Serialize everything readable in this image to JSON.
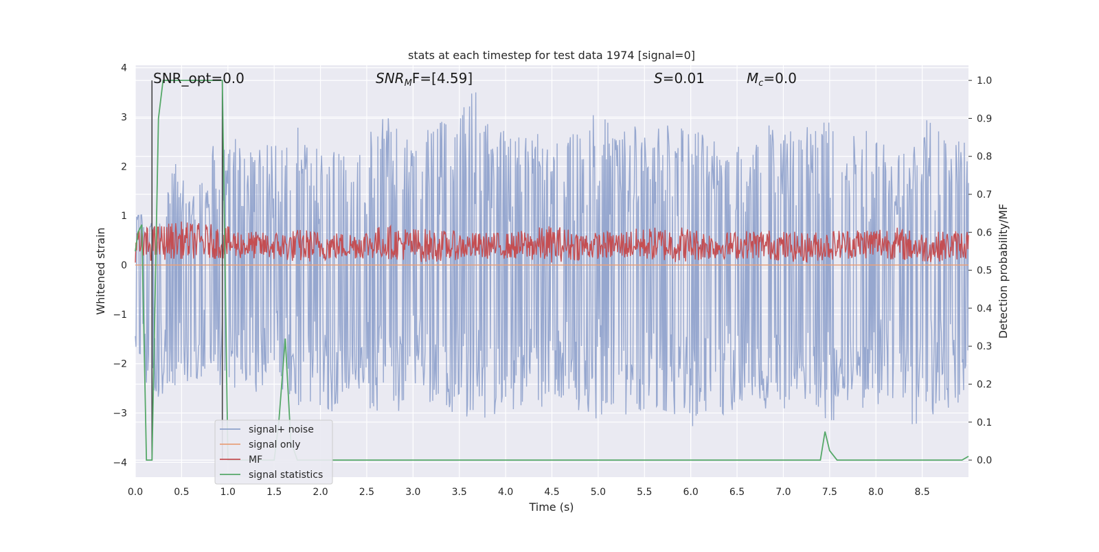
{
  "chart_data": {
    "type": "line",
    "title": "stats at each timestep for test data 1974 [signal=0]",
    "xlabel": "Time (s)",
    "ylabel_left": "Whitened strain",
    "ylabel_right": "Detection probability/MF",
    "xlim": [
      0.0,
      9.0
    ],
    "ylim_left": [
      -4.3,
      4.05
    ],
    "ylim_right": [
      -0.045,
      1.04
    ],
    "x_ticks": [
      "0.0",
      "0.5",
      "1.0",
      "1.5",
      "2.0",
      "2.5",
      "3.0",
      "3.5",
      "4.0",
      "4.5",
      "5.0",
      "5.5",
      "6.0",
      "6.5",
      "7.0",
      "7.5",
      "8.0",
      "8.5"
    ],
    "x_tick_values": [
      0.0,
      0.5,
      1.0,
      1.5,
      2.0,
      2.5,
      3.0,
      3.5,
      4.0,
      4.5,
      5.0,
      5.5,
      6.0,
      6.5,
      7.0,
      7.5,
      8.0,
      8.5
    ],
    "y_left_ticks": [
      "−4",
      "−3",
      "−2",
      "−1",
      "0",
      "1",
      "2",
      "3",
      "4"
    ],
    "y_left_tick_values": [
      -4,
      -3,
      -2,
      -1,
      0,
      1,
      2,
      3,
      4
    ],
    "y_right_ticks": [
      "0.0",
      "0.1",
      "0.2",
      "0.3",
      "0.4",
      "0.5",
      "0.6",
      "0.7",
      "0.8",
      "0.9",
      "1.0"
    ],
    "y_right_tick_values": [
      0.0,
      0.1,
      0.2,
      0.3,
      0.4,
      0.5,
      0.6,
      0.7,
      0.8,
      0.9,
      1.0
    ],
    "grid": true,
    "legend_position": "lower-left",
    "annotations": {
      "snr_opt": "SNR_opt=0.0",
      "snr_mf_sym": "SNR",
      "snr_mf_sub": "M",
      "snr_mf_rest": "F=[4.59]",
      "s_sym": "S",
      "s_rest": "=0.01",
      "mc_sym": "M",
      "mc_sub": "c",
      "mc_rest": "=0.0"
    },
    "vertical_lines_x": [
      0.18,
      0.94
    ],
    "series": [
      {
        "name": "signal+ noise",
        "color": "#8da0cb",
        "axis": "left",
        "band_upper": [
          1.2,
          0.8,
          2.1,
          1.4,
          2.5,
          2.6,
          2.3,
          2.5,
          3.0,
          2.4,
          2.6,
          2.3,
          2.9,
          3.1,
          2.4,
          3.0,
          2.8,
          3.7,
          2.9,
          2.6,
          2.9,
          2.4,
          2.8,
          3.2,
          2.9,
          2.8,
          3.0,
          2.9,
          2.9,
          2.7,
          2.7,
          2.3,
          3.0,
          2.9,
          3.0,
          3.2,
          2.8,
          2.9,
          2.6,
          2.2,
          3.1,
          2.5,
          2.7
        ],
        "band_lower": [
          -2.3,
          -2.7,
          -2.5,
          -2.3,
          -2.4,
          -2.6,
          -2.6,
          -2.4,
          -2.8,
          -3.0,
          -3.0,
          -2.5,
          -3.0,
          -3.1,
          -2.7,
          -2.9,
          -3.0,
          -3.1,
          -3.2,
          -3.0,
          -3.0,
          -2.8,
          -2.9,
          -3.2,
          -2.9,
          -3.1,
          -3.0,
          -3.1,
          -3.4,
          -3.5,
          -3.0,
          -2.9,
          -3.0,
          -2.9,
          -2.7,
          -3.3,
          -2.7,
          -3.0,
          -2.9,
          -3.3,
          -3.1,
          -3.0,
          -2.8
        ]
      },
      {
        "name": "signal only",
        "color": "#e8a07a",
        "axis": "left",
        "values": [
          0,
          0,
          0,
          0,
          0,
          0,
          0,
          0,
          0,
          0
        ]
      },
      {
        "name": "MF",
        "color": "#c44e52",
        "axis": "right",
        "band_upper": [
          0.61,
          0.63,
          0.62,
          0.6,
          0.61,
          0.6,
          0.62,
          0.61,
          0.6,
          0.6,
          0.62,
          0.6,
          0.61,
          0.62,
          0.6,
          0.61,
          0.6,
          0.61,
          0.62,
          0.6,
          0.61
        ],
        "band_lower": [
          0.52,
          0.53,
          0.53,
          0.53,
          0.52,
          0.53,
          0.53,
          0.52,
          0.53,
          0.53,
          0.52,
          0.53,
          0.53,
          0.52,
          0.53,
          0.53,
          0.52,
          0.53,
          0.53,
          0.52,
          0.53
        ]
      },
      {
        "name": "signal statistics",
        "color": "#55a868",
        "axis": "right",
        "x": [
          0.0,
          0.03,
          0.07,
          0.12,
          0.18,
          0.25,
          0.3,
          0.5,
          0.8,
          0.94,
          1.0,
          1.1,
          1.5,
          1.55,
          1.62,
          1.68,
          1.75,
          7.35,
          7.4,
          7.45,
          7.5,
          7.58,
          7.7,
          8.8,
          8.93,
          9.0
        ],
        "y": [
          0.55,
          0.6,
          0.62,
          0.0,
          0.0,
          0.9,
          1.0,
          1.0,
          1.0,
          1.0,
          0.0,
          0.0,
          0.0,
          0.1,
          0.32,
          0.05,
          0.0,
          0.0,
          0.0,
          0.075,
          0.025,
          0.0,
          0.0,
          0.0,
          0.0,
          0.01
        ]
      }
    ]
  }
}
